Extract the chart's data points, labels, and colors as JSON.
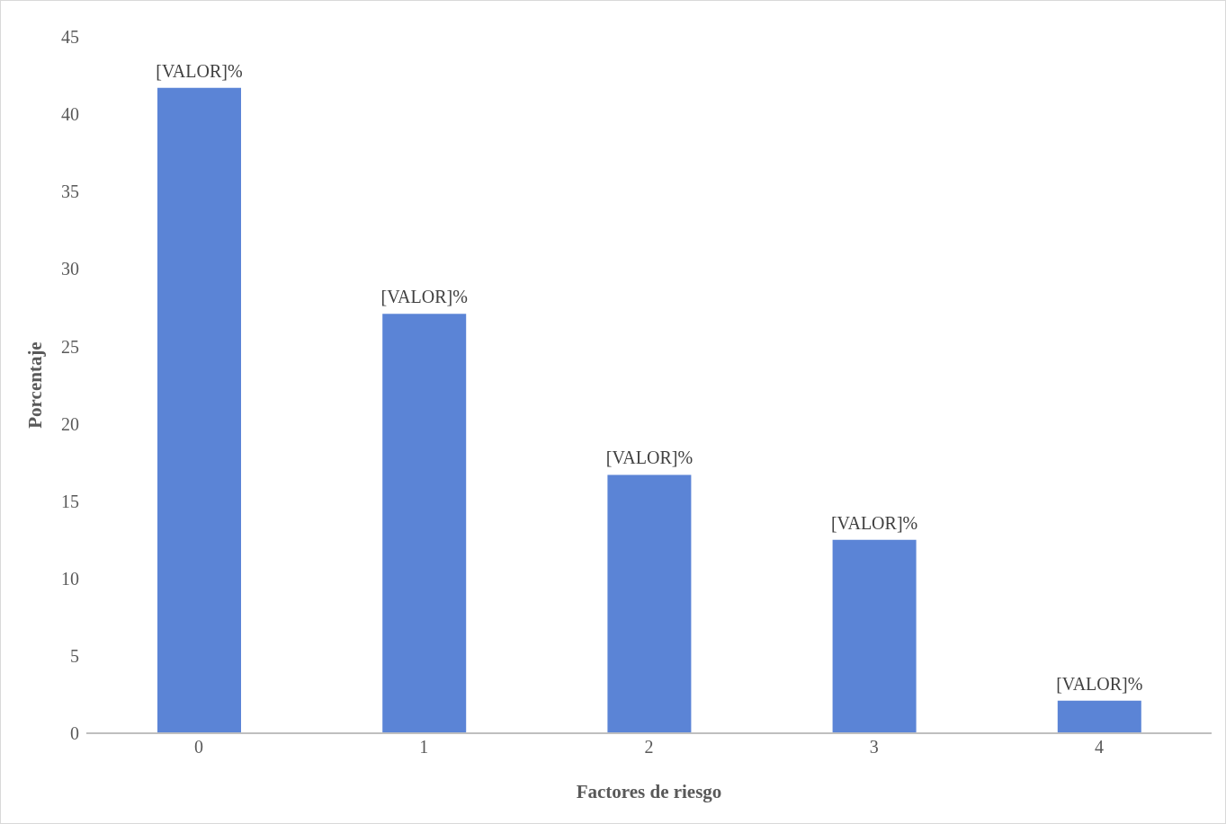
{
  "chart_data": {
    "type": "bar",
    "xlabel": "Factores de riesgo",
    "ylabel": "Porcentaje",
    "categories": [
      "0",
      "1",
      "2",
      "3",
      "4"
    ],
    "values": [
      41.7,
      27.1,
      16.7,
      12.5,
      2.1
    ],
    "value_labels": [
      "[VALOR]%",
      "[VALOR]%",
      "[VALOR]%",
      "[VALOR]%",
      "[VALOR]%"
    ],
    "color": "#5b84d6",
    "ylim": [
      0,
      45
    ],
    "yticks": [
      0,
      5,
      10,
      15,
      20,
      25,
      30,
      35,
      40,
      45
    ],
    "grid": false,
    "legend": false
  }
}
